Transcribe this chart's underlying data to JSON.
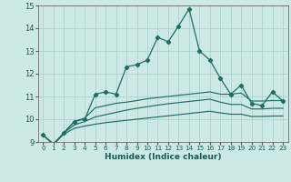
{
  "xlabel": "Humidex (Indice chaleur)",
  "ylabel": "",
  "xlim": [
    -0.5,
    23.5
  ],
  "ylim": [
    9,
    15
  ],
  "yticks": [
    9,
    10,
    11,
    12,
    13,
    14,
    15
  ],
  "xticks": [
    0,
    1,
    2,
    3,
    4,
    5,
    6,
    7,
    8,
    9,
    10,
    11,
    12,
    13,
    14,
    15,
    16,
    17,
    18,
    19,
    20,
    21,
    22,
    23
  ],
  "bg_color": "#cce9e5",
  "grid_color": "#aed4cf",
  "line_color": "#1e6e65",
  "line1": [
    9.3,
    8.9,
    9.4,
    9.9,
    10.0,
    11.1,
    11.2,
    11.1,
    12.3,
    12.4,
    12.6,
    13.6,
    13.4,
    14.1,
    14.85,
    13.0,
    12.6,
    11.8,
    11.1,
    11.5,
    10.7,
    10.6,
    11.2,
    10.8
  ],
  "line2": [
    9.3,
    8.9,
    9.4,
    9.9,
    10.05,
    10.5,
    10.6,
    10.7,
    10.75,
    10.82,
    10.9,
    10.95,
    11.0,
    11.05,
    11.1,
    11.15,
    11.2,
    11.1,
    11.1,
    11.15,
    10.8,
    10.8,
    10.82,
    10.82
  ],
  "line3": [
    9.3,
    8.9,
    9.4,
    9.75,
    9.9,
    10.1,
    10.2,
    10.3,
    10.4,
    10.48,
    10.55,
    10.62,
    10.68,
    10.73,
    10.78,
    10.83,
    10.88,
    10.75,
    10.65,
    10.65,
    10.45,
    10.45,
    10.48,
    10.48
  ],
  "line4": [
    9.3,
    8.9,
    9.35,
    9.6,
    9.7,
    9.78,
    9.85,
    9.9,
    9.95,
    10.0,
    10.05,
    10.1,
    10.15,
    10.2,
    10.25,
    10.3,
    10.35,
    10.28,
    10.22,
    10.22,
    10.12,
    10.12,
    10.14,
    10.14
  ]
}
